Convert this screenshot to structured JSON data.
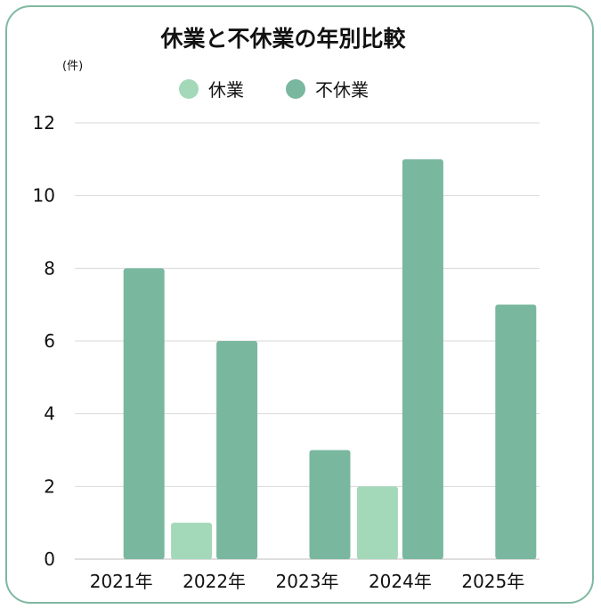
{
  "chart_data": {
    "type": "bar",
    "title": "休業と不休業の年別比較",
    "unit_label": "(件)",
    "categories": [
      "2021年",
      "2022年",
      "2023年",
      "2024年",
      "2025年"
    ],
    "series": [
      {
        "name": "休業",
        "color": "#a3d8b8",
        "values": [
          0,
          1,
          0,
          2,
          0
        ]
      },
      {
        "name": "不休業",
        "color": "#79b89e",
        "values": [
          8,
          6,
          3,
          11,
          7
        ]
      }
    ],
    "ylim": [
      0,
      12
    ],
    "yticks": [
      "0",
      "2",
      "4",
      "6",
      "8",
      "10",
      "12"
    ],
    "legend": "top-center",
    "grid": true
  }
}
